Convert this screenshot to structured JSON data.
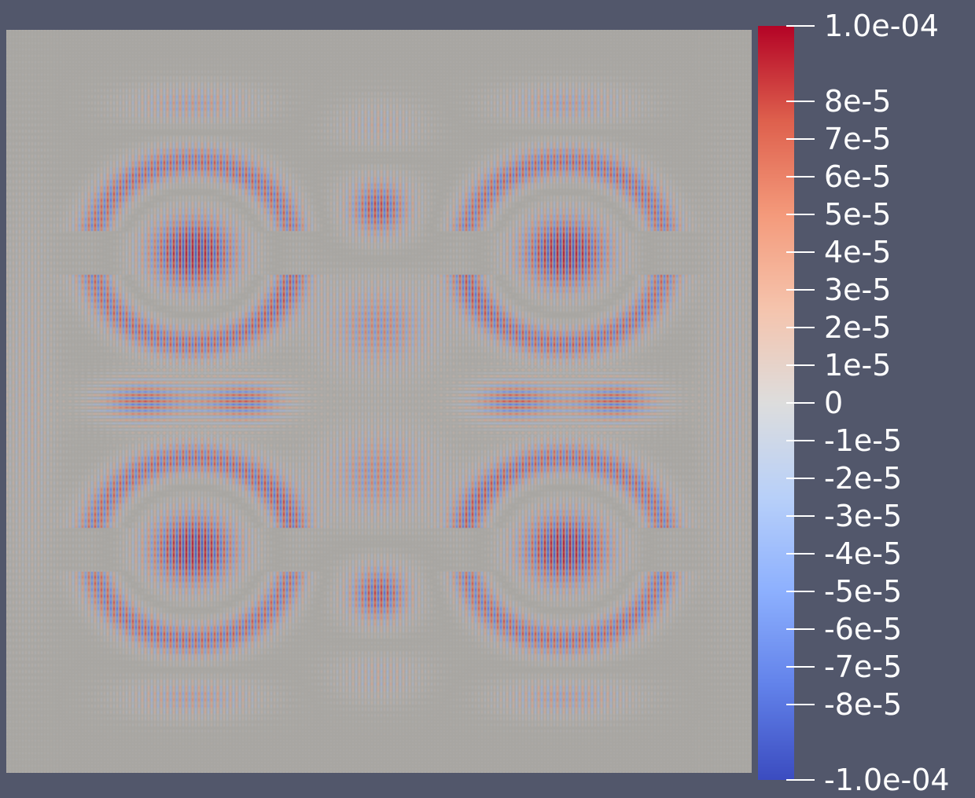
{
  "colors": {
    "background": "#52576b",
    "neutral": "#a8a6a2",
    "positive_max": "#b40426",
    "negative_max": "#3b4cc0",
    "midpoint": "#dddddd"
  },
  "scalar_bar": {
    "max_label": "1.0e-04",
    "min_label": "-1.0e-04",
    "range": [
      -0.0001,
      0.0001
    ],
    "colormap": "coolwarm",
    "tick_labels": [
      {
        "value": 0.0001,
        "label": "1.0e-04"
      },
      {
        "value": 8e-05,
        "label": "8e-5"
      },
      {
        "value": 7e-05,
        "label": "7e-5"
      },
      {
        "value": 6e-05,
        "label": "6e-5"
      },
      {
        "value": 5e-05,
        "label": "5e-5"
      },
      {
        "value": 4e-05,
        "label": "4e-5"
      },
      {
        "value": 3e-05,
        "label": "3e-5"
      },
      {
        "value": 2e-05,
        "label": "2e-5"
      },
      {
        "value": 1e-05,
        "label": "1e-5"
      },
      {
        "value": 0,
        "label": "0"
      },
      {
        "value": -1e-05,
        "label": "-1e-5"
      },
      {
        "value": -2e-05,
        "label": "-2e-5"
      },
      {
        "value": -3e-05,
        "label": "-3e-5"
      },
      {
        "value": -4e-05,
        "label": "-4e-5"
      },
      {
        "value": -5e-05,
        "label": "-5e-5"
      },
      {
        "value": -6e-05,
        "label": "-6e-5"
      },
      {
        "value": -7e-05,
        "label": "-7e-5"
      },
      {
        "value": -8e-05,
        "label": "-8e-5"
      },
      {
        "value": -0.0001,
        "label": "-1.0e-04"
      }
    ]
  }
}
